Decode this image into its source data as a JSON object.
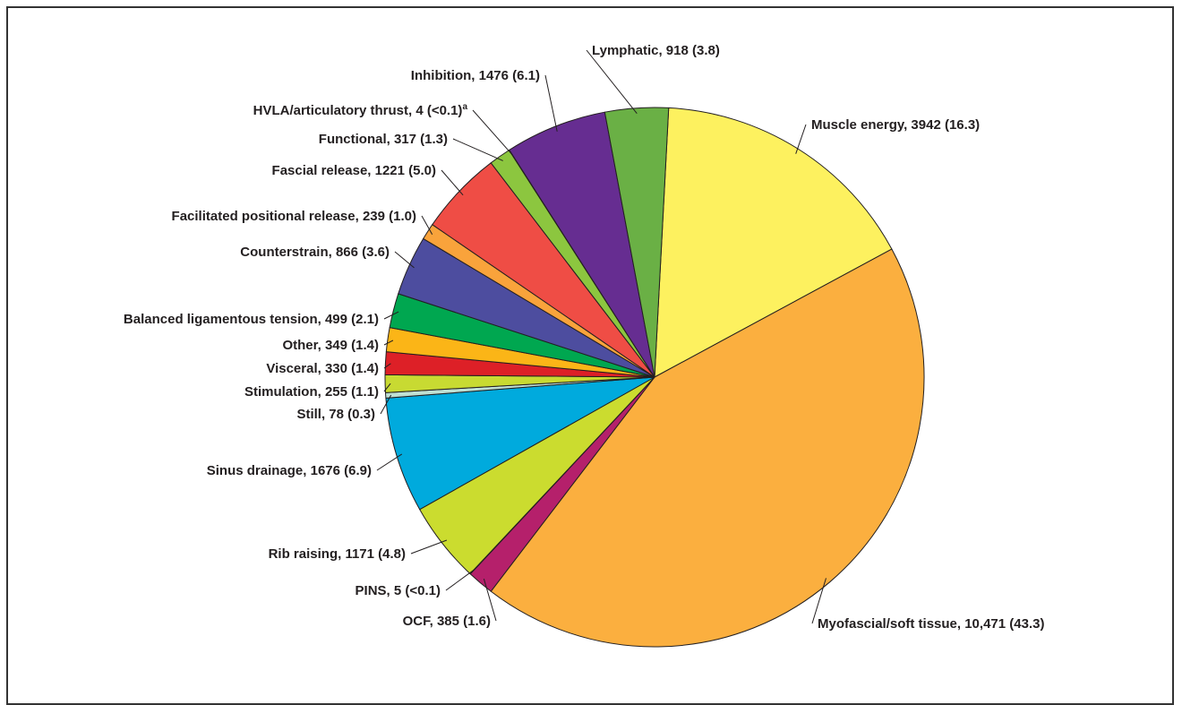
{
  "chart_data": {
    "type": "pie",
    "title": "",
    "slices": [
      {
        "name": "Muscle energy",
        "value": 3942,
        "label": "Muscle energy, 3942 (16.3)",
        "color": "#fdf15f"
      },
      {
        "name": "Myofascial/soft tissue",
        "value": 10471,
        "label": "Myofascial/soft tissue, 10,471 (43.3)",
        "color": "#fbaf3f"
      },
      {
        "name": "OCF",
        "value": 385,
        "label": "OCF, 385 (1.6)",
        "color": "#b5206b"
      },
      {
        "name": "PINS",
        "value": 5,
        "label": "PINS, 5 (<0.1)",
        "color": "#d3dd2f"
      },
      {
        "name": "Rib raising",
        "value": 1171,
        "label": "Rib raising, 1171 (4.8)",
        "color": "#cbdc2f"
      },
      {
        "name": "Sinus drainage",
        "value": 1676,
        "label": "Sinus drainage, 1676 (6.9)",
        "color": "#00aadd"
      },
      {
        "name": "Still",
        "value": 78,
        "label": "Still, 78 (0.3)",
        "color": "#bfe0d4"
      },
      {
        "name": "Stimulation",
        "value": 255,
        "label": "Stimulation, 255 (1.1)",
        "color": "#c8da32"
      },
      {
        "name": "Visceral",
        "value": 330,
        "label": "Visceral, 330 (1.4)",
        "color": "#dd2027"
      },
      {
        "name": "Other",
        "value": 349,
        "label": "Other, 349 (1.4)",
        "color": "#fbb517"
      },
      {
        "name": "Balanced ligamentous tension",
        "value": 499,
        "label": "Balanced ligamentous tension, 499 (2.1)",
        "color": "#00a750"
      },
      {
        "name": "Counterstrain",
        "value": 866,
        "label": "Counterstrain, 866 (3.6)",
        "color": "#4d4d9f"
      },
      {
        "name": "Facilitated positional release",
        "value": 239,
        "label": "Facilitated positional release, 239 (1.0)",
        "color": "#f9a33b"
      },
      {
        "name": "Fascial release",
        "value": 1221,
        "label": "Fascial release, 1221 (5.0)",
        "color": "#ef4d45"
      },
      {
        "name": "Functional",
        "value": 317,
        "label": "Functional, 317 (1.3)",
        "color": "#8cc63f"
      },
      {
        "name": "HVLA/articulatory thrust",
        "value": 4,
        "label": "HVLA/articulatory thrust, 4 (<0.1)",
        "label_sup": "a",
        "color": "#6a2f8f"
      },
      {
        "name": "Inhibition",
        "value": 1476,
        "label": "Inhibition, 1476 (6.1)",
        "color": "#662d91"
      },
      {
        "name": "Lymphatic",
        "value": 918,
        "label": "Lymphatic, 918 (3.8)",
        "color": "#6ab045"
      }
    ],
    "start_angle_deg": 3,
    "direction": "clockwise",
    "legend": "none"
  }
}
